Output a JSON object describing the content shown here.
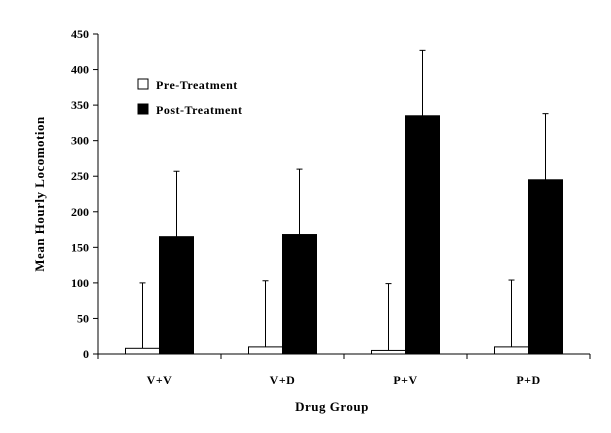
{
  "chart_data": {
    "type": "bar",
    "title": "",
    "xlabel": "Drug Group",
    "ylabel": "Mean Hourly Locomotion",
    "categories": [
      "V+V",
      "V+D",
      "P+V",
      "P+D"
    ],
    "ylim": [
      0,
      450
    ],
    "yticks": [
      0,
      50,
      100,
      150,
      200,
      250,
      300,
      350,
      400,
      450
    ],
    "legend_position": "top-left",
    "grid": false,
    "series": [
      {
        "name": "Pre-Treatment",
        "color": "#ffffff",
        "values": [
          8,
          10,
          5,
          10
        ],
        "error": [
          92,
          93,
          94,
          94
        ]
      },
      {
        "name": "Post-Treatment",
        "color": "#000000",
        "values": [
          165,
          168,
          335,
          245
        ],
        "error": [
          92,
          92,
          92,
          93
        ]
      }
    ]
  }
}
